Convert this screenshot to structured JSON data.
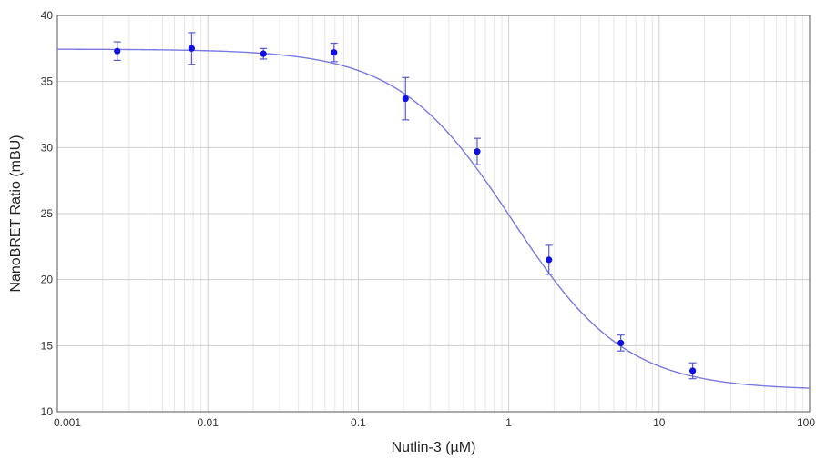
{
  "chart_data": {
    "type": "scatter",
    "title": "",
    "xlabel": "Nutlin-3 (µM)",
    "ylabel": "NanoBRET Ratio (mBU)",
    "x_scale": "log",
    "xlim": [
      0.001,
      100
    ],
    "ylim": [
      10,
      40
    ],
    "grid": true,
    "x_ticks": [
      {
        "value": 0.001,
        "label": "0.001"
      },
      {
        "value": 0.01,
        "label": "0.01"
      },
      {
        "value": 0.1,
        "label": "0.1"
      },
      {
        "value": 1,
        "label": "1"
      },
      {
        "value": 10,
        "label": "10"
      },
      {
        "value": 100,
        "label": "100"
      }
    ],
    "y_ticks": [
      {
        "value": 10,
        "label": "10"
      },
      {
        "value": 15,
        "label": "15"
      },
      {
        "value": 20,
        "label": "20"
      },
      {
        "value": 25,
        "label": "25"
      },
      {
        "value": 30,
        "label": "30"
      },
      {
        "value": 35,
        "label": "35"
      },
      {
        "value": 40,
        "label": "40"
      }
    ],
    "points": [
      {
        "x": 0.0025,
        "y": 37.3,
        "err": 0.7
      },
      {
        "x": 0.0078,
        "y": 37.5,
        "err": 1.2
      },
      {
        "x": 0.0234,
        "y": 37.1,
        "err": 0.4
      },
      {
        "x": 0.069,
        "y": 37.2,
        "err": 0.7
      },
      {
        "x": 0.206,
        "y": 33.7,
        "err": 1.6
      },
      {
        "x": 0.617,
        "y": 29.7,
        "err": 1.0
      },
      {
        "x": 1.85,
        "y": 21.5,
        "err": 1.1
      },
      {
        "x": 5.56,
        "y": 15.2,
        "err": 0.6
      },
      {
        "x": 16.7,
        "y": 13.1,
        "err": 0.6
      }
    ],
    "fit_curve": {
      "model": "four-parameter logistic",
      "top": 37.45,
      "bottom": 11.65,
      "ic50": 1.05,
      "hill_slope": 1.15
    },
    "colors": {
      "points": "#1010e0",
      "error_bars": "#5a5ad0",
      "curve": "#7a7ae0",
      "grid_major": "#cfcfcf",
      "grid_minor": "#e6e6e6",
      "frame": "#555555"
    }
  }
}
